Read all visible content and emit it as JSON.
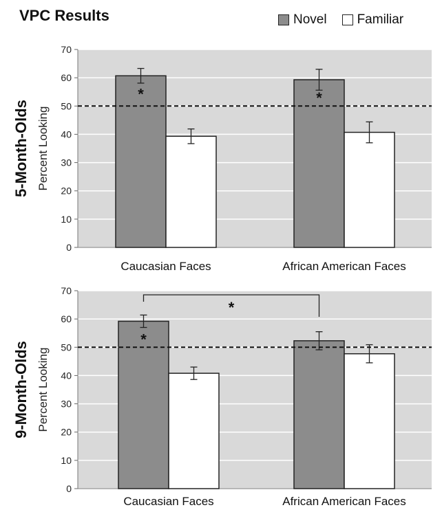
{
  "page": {
    "title": "VPC Results",
    "legend": [
      {
        "label": "Novel",
        "color": "#8c8c8c"
      },
      {
        "label": "Familiar",
        "color": "#ffffff"
      }
    ]
  },
  "chart_data": [
    {
      "type": "bar",
      "title": "",
      "panel_label": "5-Month-Olds",
      "ylabel": "Percent Looking",
      "xlabel": "",
      "ylim": [
        0,
        70
      ],
      "yticks": [
        0,
        10,
        20,
        30,
        40,
        50,
        60,
        70
      ],
      "grid": true,
      "chance_line": 50,
      "categories": [
        "Caucasian Faces",
        "African American Faces"
      ],
      "series": [
        {
          "name": "Novel",
          "color": "#8c8c8c",
          "values": [
            60.7,
            59.3
          ],
          "errors": [
            2.6,
            3.7
          ],
          "significance": [
            "*",
            "*"
          ]
        },
        {
          "name": "Familiar",
          "color": "#ffffff",
          "values": [
            39.3,
            40.7
          ],
          "errors": [
            2.6,
            3.7
          ],
          "significance": [
            "",
            ""
          ]
        }
      ],
      "comparison": null
    },
    {
      "type": "bar",
      "title": "",
      "panel_label": "9-Month-Olds",
      "ylabel": "Percent Looking",
      "xlabel": "",
      "ylim": [
        0,
        70
      ],
      "yticks": [
        0,
        10,
        20,
        30,
        40,
        50,
        60,
        70
      ],
      "grid": true,
      "chance_line": 50,
      "categories": [
        "Caucasian Faces",
        "African American Faces"
      ],
      "series": [
        {
          "name": "Novel",
          "color": "#8c8c8c",
          "values": [
            59.2,
            52.3
          ],
          "errors": [
            2.2,
            3.2
          ],
          "significance": [
            "*",
            ""
          ]
        },
        {
          "name": "Familiar",
          "color": "#ffffff",
          "values": [
            40.8,
            47.7
          ],
          "errors": [
            2.2,
            3.2
          ],
          "significance": [
            "",
            ""
          ]
        }
      ],
      "comparison": {
        "between": [
          "Caucasian Faces",
          "African American Faces"
        ],
        "series": "Novel",
        "label": "*"
      }
    }
  ]
}
